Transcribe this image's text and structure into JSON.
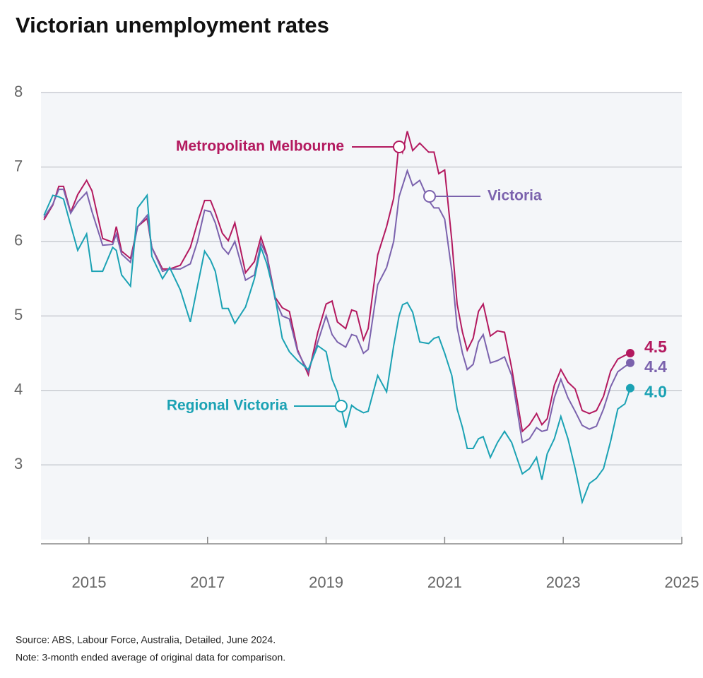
{
  "chart_data": {
    "type": "line",
    "title": "Victorian unemployment rates",
    "source": "Source: ABS, Labour Force, Australia, Detailed, June 2024.",
    "note": "Note: 3-month ended average of original data for comparison.",
    "x": [
      2014.24,
      2014.39,
      2014.49,
      2014.57,
      2014.69,
      2014.81,
      2014.96,
      2015.05,
      2015.23,
      2015.4,
      2015.46,
      2015.55,
      2015.7,
      2015.82,
      2015.98,
      2016.06,
      2016.24,
      2016.36,
      2016.54,
      2016.71,
      2016.83,
      2016.95,
      2017.05,
      2017.13,
      2017.25,
      2017.35,
      2017.46,
      2017.64,
      2017.79,
      2017.9,
      2018.0,
      2018.14,
      2018.26,
      2018.38,
      2018.52,
      2018.7,
      2018.86,
      2019.0,
      2019.1,
      2019.19,
      2019.33,
      2019.43,
      2019.51,
      2019.63,
      2019.71,
      2019.87,
      2020.02,
      2020.14,
      2020.23,
      2020.29,
      2020.37,
      2020.46,
      2020.58,
      2020.73,
      2020.82,
      2020.9,
      2021.0,
      2021.12,
      2021.21,
      2021.3,
      2021.38,
      2021.48,
      2021.57,
      2021.65,
      2021.77,
      2021.89,
      2022.01,
      2022.13,
      2022.31,
      2022.43,
      2022.55,
      2022.64,
      2022.73,
      2022.85,
      2022.96,
      2023.08,
      2023.2,
      2023.32,
      2023.44,
      2023.56,
      2023.68,
      2023.8,
      2023.92,
      2024.04,
      2024.13
    ],
    "series": [
      {
        "name": "Metropolitan Melbourne",
        "color": "#b3195f",
        "last_label": "4.5",
        "values": [
          6.29,
          6.49,
          6.74,
          6.74,
          6.39,
          6.63,
          6.82,
          6.68,
          6.04,
          5.99,
          6.2,
          5.87,
          5.77,
          6.2,
          6.31,
          5.92,
          5.63,
          5.63,
          5.68,
          5.92,
          6.25,
          6.55,
          6.55,
          6.39,
          6.11,
          6.01,
          6.25,
          5.58,
          5.73,
          6.06,
          5.82,
          5.25,
          5.11,
          5.06,
          4.54,
          4.21,
          4.78,
          5.16,
          5.2,
          4.92,
          4.83,
          5.08,
          5.06,
          4.68,
          4.83,
          5.82,
          6.2,
          6.58,
          7.34,
          7.2,
          7.48,
          7.22,
          7.32,
          7.2,
          7.2,
          6.91,
          6.96,
          6.01,
          5.16,
          4.78,
          4.54,
          4.7,
          5.06,
          5.16,
          4.73,
          4.8,
          4.78,
          4.3,
          3.45,
          3.54,
          3.69,
          3.54,
          3.62,
          4.07,
          4.28,
          4.11,
          4.02,
          3.73,
          3.69,
          3.73,
          3.92,
          4.26,
          4.42,
          4.47,
          4.5
        ]
      },
      {
        "name": "Victoria",
        "color": "#7b62ad",
        "last_label": "4.4",
        "values": [
          6.32,
          6.5,
          6.7,
          6.7,
          6.38,
          6.53,
          6.66,
          6.4,
          5.95,
          5.96,
          6.1,
          5.83,
          5.72,
          6.2,
          6.35,
          5.92,
          5.6,
          5.63,
          5.63,
          5.7,
          6.0,
          6.42,
          6.4,
          6.25,
          5.92,
          5.83,
          6.0,
          5.48,
          5.55,
          5.98,
          5.8,
          5.22,
          5.0,
          4.96,
          4.52,
          4.25,
          4.65,
          5.0,
          4.75,
          4.65,
          4.58,
          4.75,
          4.73,
          4.5,
          4.55,
          5.42,
          5.65,
          6.0,
          6.6,
          6.75,
          6.95,
          6.75,
          6.82,
          6.55,
          6.45,
          6.45,
          6.3,
          5.6,
          4.85,
          4.5,
          4.28,
          4.35,
          4.65,
          4.75,
          4.37,
          4.4,
          4.45,
          4.2,
          3.3,
          3.35,
          3.5,
          3.45,
          3.47,
          3.9,
          4.15,
          3.9,
          3.72,
          3.53,
          3.48,
          3.52,
          3.75,
          4.05,
          4.25,
          4.32,
          4.37
        ]
      },
      {
        "name": "Regional Victoria",
        "color": "#1ba2b4",
        "last_label": "4.0",
        "values": [
          6.35,
          6.62,
          6.6,
          6.57,
          6.22,
          5.88,
          6.1,
          5.6,
          5.6,
          5.92,
          5.88,
          5.55,
          5.4,
          6.45,
          6.62,
          5.8,
          5.5,
          5.65,
          5.35,
          4.92,
          5.4,
          5.87,
          5.75,
          5.6,
          5.1,
          5.1,
          4.9,
          5.12,
          5.5,
          5.92,
          5.7,
          5.25,
          4.7,
          4.52,
          4.4,
          4.28,
          4.6,
          4.52,
          4.15,
          3.98,
          3.5,
          3.8,
          3.75,
          3.7,
          3.72,
          4.2,
          3.98,
          4.6,
          5.0,
          5.15,
          5.18,
          5.05,
          4.65,
          4.63,
          4.7,
          4.72,
          4.5,
          4.2,
          3.75,
          3.5,
          3.22,
          3.22,
          3.35,
          3.38,
          3.1,
          3.3,
          3.45,
          3.3,
          2.88,
          2.95,
          3.1,
          2.8,
          3.15,
          3.35,
          3.65,
          3.35,
          2.95,
          2.5,
          2.75,
          2.82,
          2.95,
          3.32,
          3.75,
          3.82,
          4.03
        ]
      }
    ],
    "xlim": [
      2014.19,
      2025
    ],
    "xticks": [
      2015,
      2017,
      2019,
      2021,
      2023,
      2025
    ],
    "ylim": [
      1.94,
      8
    ],
    "yticks": [
      3,
      4,
      5,
      6,
      7,
      8
    ],
    "grid": true
  }
}
